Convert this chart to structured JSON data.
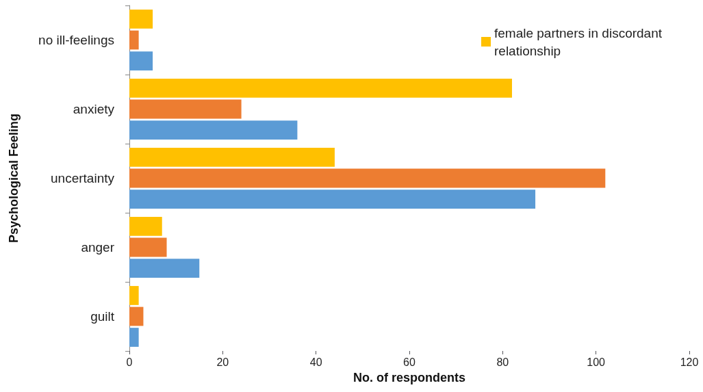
{
  "chart_data": {
    "type": "bar",
    "orientation": "horizontal",
    "categories": [
      "no ill-feelings",
      "anxiety",
      "uncertainty",
      "anger",
      "guilt"
    ],
    "series": [
      {
        "name": "female partners in discordant relationship",
        "color": "#ffc000",
        "values": [
          5,
          82,
          44,
          7,
          2
        ]
      },
      {
        "color": "#ed7d31",
        "values": [
          2,
          24,
          102,
          8,
          3
        ]
      },
      {
        "color": "#5b9bd5",
        "values": [
          5,
          36,
          87,
          15,
          2
        ]
      }
    ],
    "xlim": [
      0,
      120
    ],
    "xticks": [
      0,
      20,
      40,
      60,
      80,
      100,
      120
    ],
    "xlabel": "No. of respondents",
    "ylabel": "Psychological Feeling",
    "grid": false,
    "legend": "top right"
  }
}
